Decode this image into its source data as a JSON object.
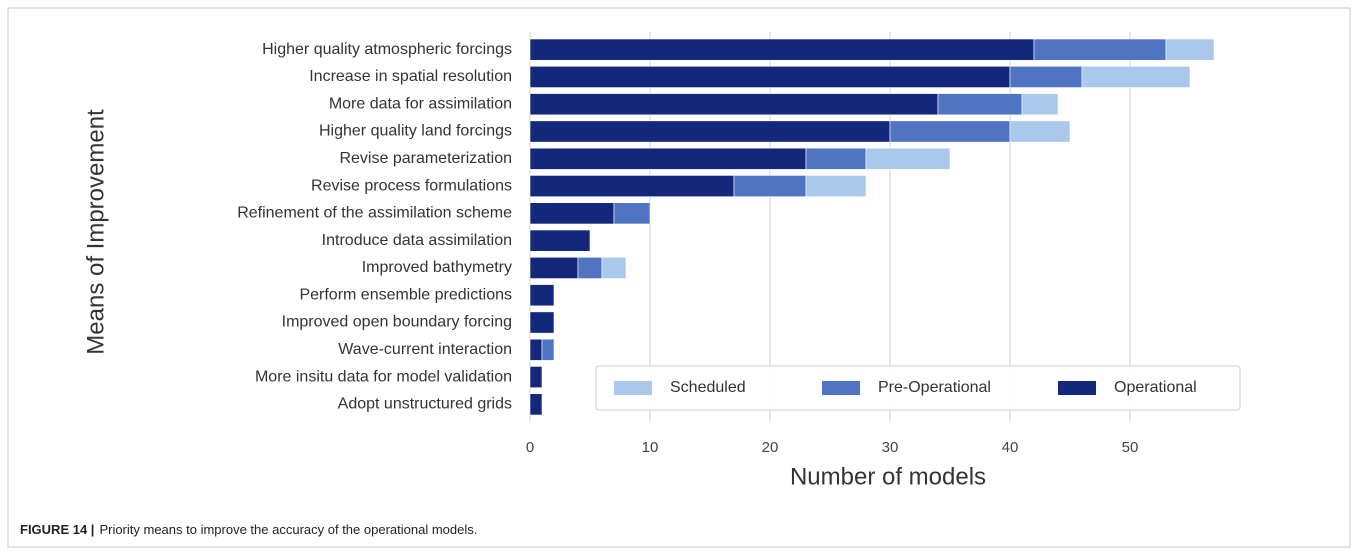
{
  "chart_data": {
    "type": "stacked-barh",
    "xlabel": "Number of models",
    "ylabel": "Means of Improvement",
    "categories": [
      "Higher quality atmospheric forcings",
      "Increase in spatial resolution",
      "More data for assimilation",
      "Higher quality land forcings",
      "Revise parameterization",
      "Revise process formulations",
      "Refinement of the assimilation scheme",
      "Introduce data assimilation",
      "Improved bathymetry",
      "Perform ensemble predictions",
      "Improved open boundary forcing",
      "Wave-current interaction",
      "More insitu data for model validation",
      "Adopt unstructured grids"
    ],
    "series": [
      {
        "name": "Operational",
        "color": "#13287a",
        "values": [
          42,
          40,
          34,
          30,
          23,
          17,
          7,
          5,
          4,
          2,
          2,
          1,
          1,
          1
        ]
      },
      {
        "name": "Pre-Operational",
        "color": "#4f74c2",
        "values": [
          11,
          6,
          7,
          10,
          5,
          6,
          3,
          0,
          2,
          0,
          0,
          1,
          0,
          0
        ]
      },
      {
        "name": "Scheduled",
        "color": "#a9c8ec",
        "values": [
          4,
          9,
          3,
          5,
          7,
          5,
          0,
          0,
          2,
          0,
          0,
          0,
          0,
          0
        ]
      }
    ],
    "xlim": [
      0,
      60
    ],
    "xticks": [
      0,
      10,
      20,
      30,
      40,
      50
    ],
    "grid": true,
    "legend": "lower right"
  },
  "caption": {
    "label": "FIGURE 14 |",
    "text": "Priority means to improve the accuracy of the operational models."
  }
}
